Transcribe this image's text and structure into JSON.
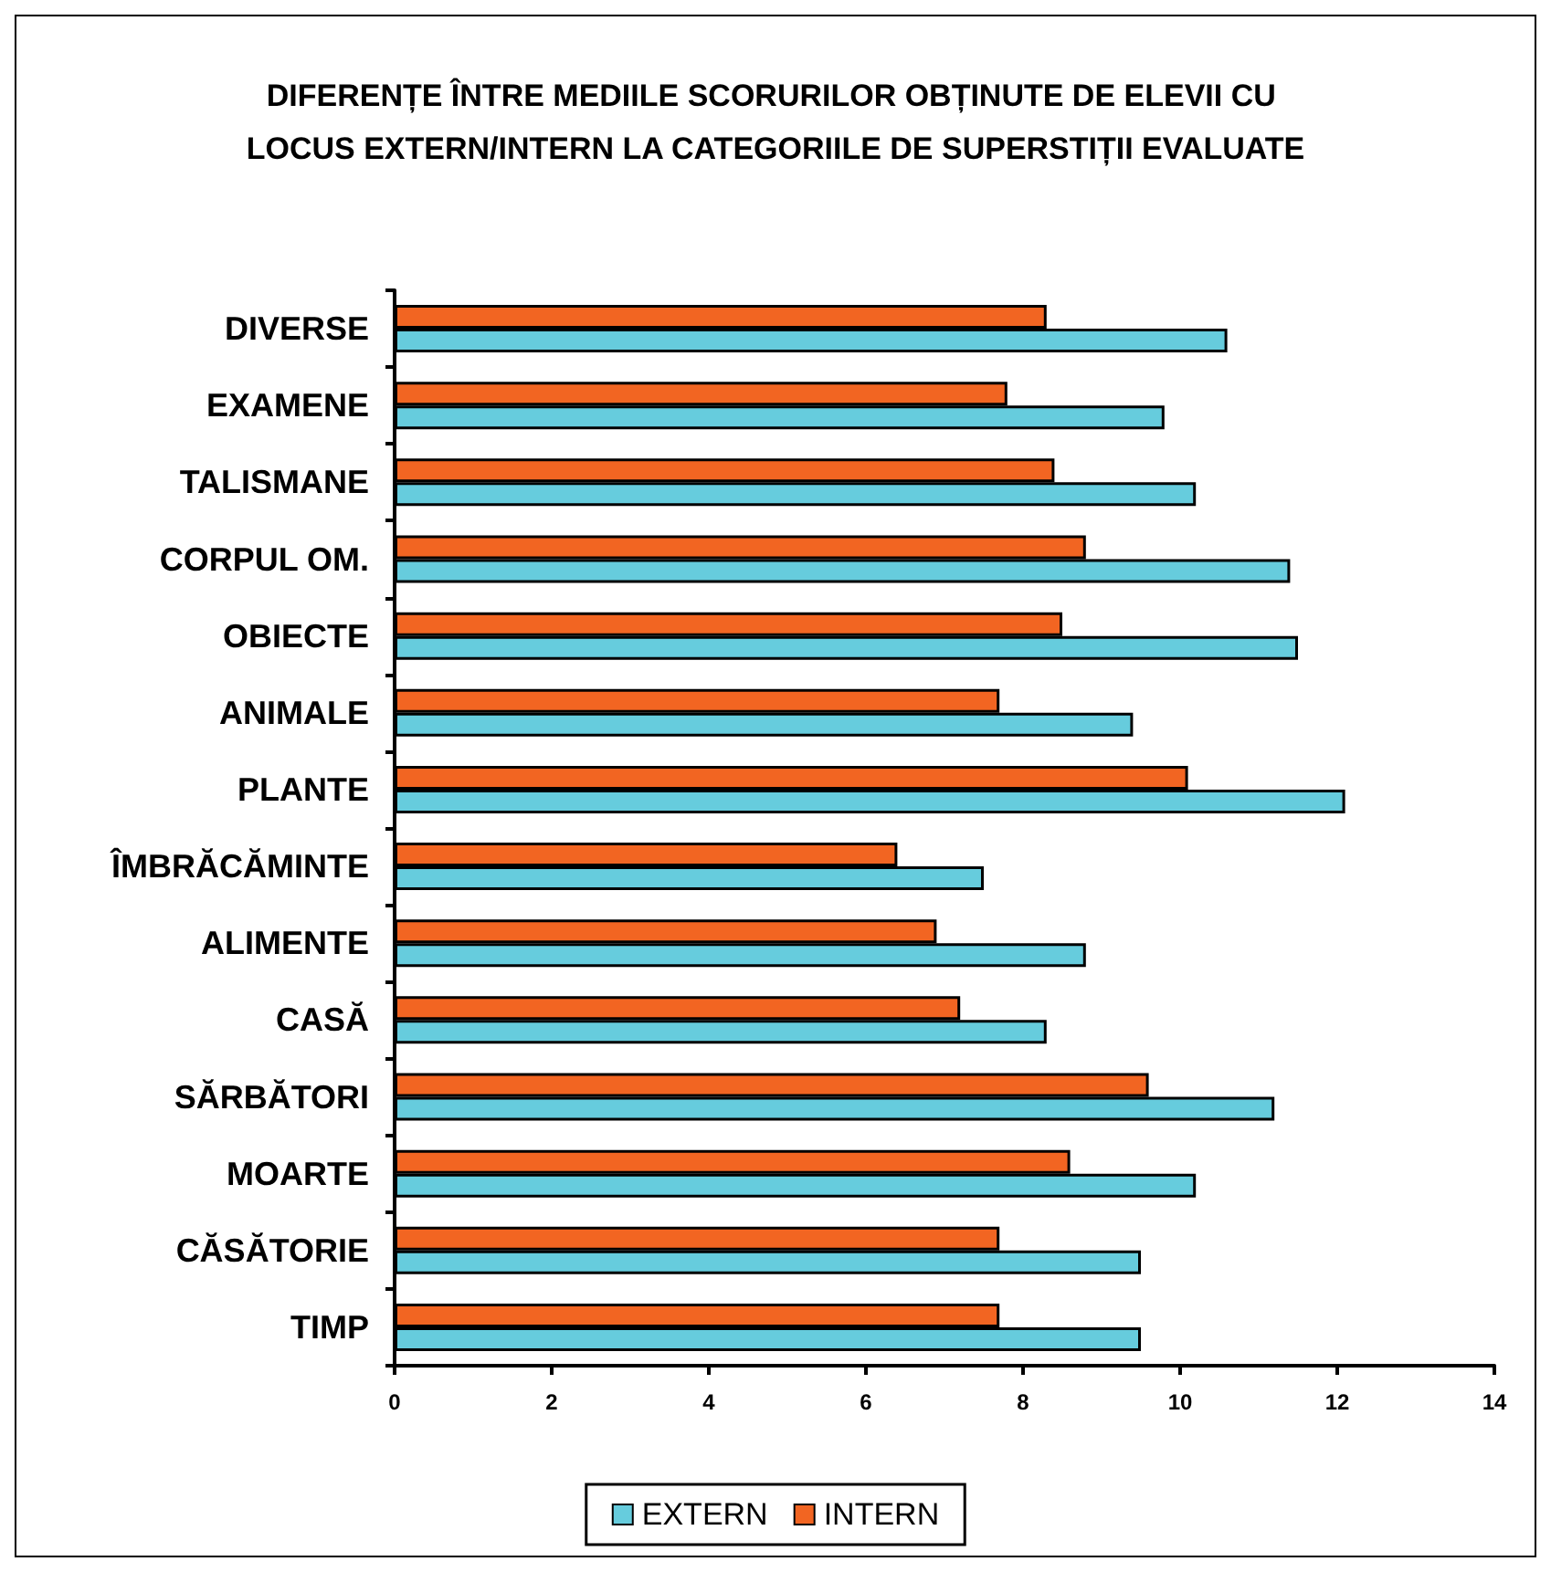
{
  "chart_data": {
    "type": "bar",
    "orientation": "horizontal",
    "title": "DIFERENȚE ÎNTRE MEDIILE SCORURILOR OBȚINUTE DE ELEVII CU LOCUS EXTERN/INTERN LA CATEGORIILE DE SUPERSTIȚII EVALUATE",
    "categories": [
      "DIVERSE",
      "EXAMENE",
      "TALISMANE",
      "CORPUL OM.",
      "OBIECTE",
      "ANIMALE",
      "PLANTE",
      "ÎMBRĂCĂMINTE",
      "ALIMENTE",
      "CASĂ",
      "SĂRBĂTORI",
      "MOARTE",
      "CĂSĂTORIE",
      "TIMP"
    ],
    "series": [
      {
        "name": "EXTERN",
        "color": "#66ccdd",
        "values": [
          10.6,
          9.8,
          10.2,
          11.4,
          11.5,
          9.4,
          12.1,
          7.5,
          8.8,
          8.3,
          11.2,
          10.2,
          9.5,
          9.5
        ]
      },
      {
        "name": "INTERN",
        "color": "#f26522",
        "values": [
          8.3,
          7.8,
          8.4,
          8.8,
          8.5,
          7.7,
          10.1,
          6.4,
          6.9,
          7.2,
          9.6,
          8.6,
          7.7,
          7.7
        ]
      }
    ],
    "xlim": [
      0,
      14
    ],
    "xticks": [
      0,
      2,
      4,
      6,
      8,
      10,
      12,
      14
    ],
    "grid": false,
    "legend": "bottom"
  }
}
